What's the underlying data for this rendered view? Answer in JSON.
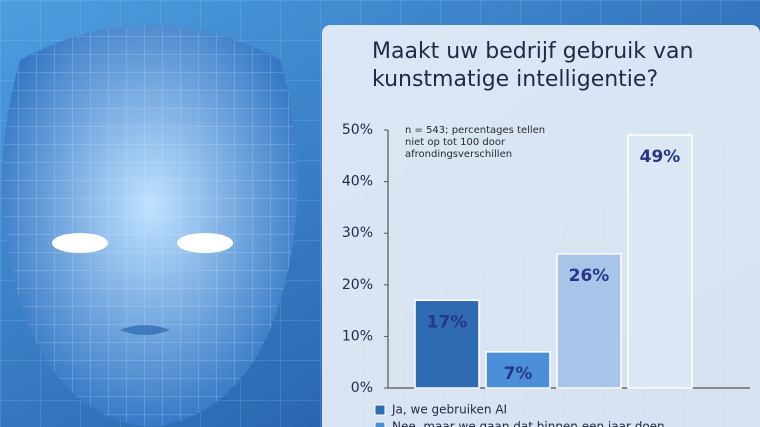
{
  "chart_data": {
    "type": "bar",
    "title": [
      "Maakt uw bedrijf gebruik van",
      "kunstmatige intelligentie?"
    ],
    "note": [
      "n = 543; percentages tellen",
      "niet op tot 100 door",
      "afrondingsverschillen"
    ],
    "categories": [
      "Ja, we gebruiken AI",
      "Nee, maar we gaan dat binnen een jaar doen",
      null,
      null
    ],
    "values": [
      17,
      7,
      26,
      49
    ],
    "value_labels": [
      "17%",
      "7%",
      "26%",
      "49%"
    ],
    "colors": [
      "#2f6bb3",
      "#4a8fd8",
      "#a8c4e8",
      "#dce7f6"
    ],
    "ylim": [
      0,
      50
    ],
    "yticks": [
      {
        "value": 0,
        "label": "0%"
      },
      {
        "value": 10,
        "label": "10%"
      },
      {
        "value": 20,
        "label": "20%"
      },
      {
        "value": 30,
        "label": "30%"
      },
      {
        "value": 40,
        "label": "40%"
      },
      {
        "value": 50,
        "label": "50%"
      }
    ],
    "grid": false
  }
}
